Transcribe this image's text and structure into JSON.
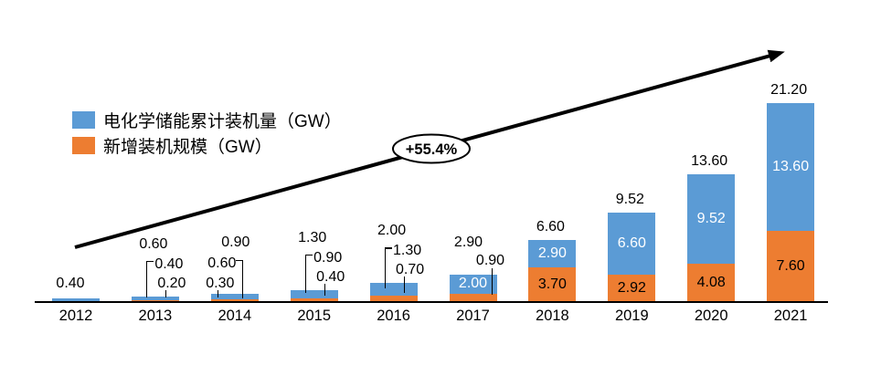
{
  "chart_data": {
    "type": "bar",
    "stacked": true,
    "title": "",
    "xlabel": "",
    "ylabel": "",
    "grid": false,
    "legend_position": "top-left",
    "categories": [
      "2012",
      "2013",
      "2014",
      "2015",
      "2016",
      "2017",
      "2018",
      "2019",
      "2020",
      "2021"
    ],
    "series": [
      {
        "name": "电化学储能累计装机量（GW）",
        "color": "#5B9BD5",
        "values": [
          0.4,
          0.4,
          0.6,
          0.9,
          1.3,
          2.0,
          2.9,
          6.6,
          9.52,
          13.6
        ],
        "value_labels": [
          null,
          "0.40",
          "0.60",
          "0.90",
          "1.30",
          "2.00",
          "2.90",
          "6.60",
          "9.52",
          "13.60"
        ]
      },
      {
        "name": "新增装机规模（GW）",
        "color": "#ED7D31",
        "values": [
          0,
          0.2,
          0.3,
          0.4,
          0.7,
          0.9,
          3.7,
          2.92,
          4.08,
          7.6
        ],
        "value_labels": [
          null,
          "0.20",
          "0.30",
          "0.40",
          "0.70",
          "0.90",
          "3.70",
          "2.92",
          "4.08",
          "7.60"
        ]
      }
    ],
    "totals": [
      0.4,
      0.6,
      0.9,
      1.3,
      2.0,
      2.9,
      6.6,
      9.52,
      13.6,
      21.2
    ],
    "total_labels": [
      "0.40",
      "0.60",
      "0.90",
      "1.30",
      "2.00",
      "2.90",
      "6.60",
      "9.52",
      "13.60",
      "21.20"
    ],
    "growth_label": "+55.4%",
    "label_styles": [
      "above",
      "callout-left",
      "callout-right",
      "callout-left",
      "callout-left",
      "side-right",
      "inside",
      "inside",
      "inside",
      "inside"
    ],
    "colors": {
      "axis": "#000000",
      "text": "#000000",
      "inside_label_on_blue": "#ffffff",
      "inside_label_on_orange": "#000000",
      "arrow": "#000000",
      "bubble_fill": "#ffffff",
      "bubble_stroke": "#000000"
    }
  }
}
